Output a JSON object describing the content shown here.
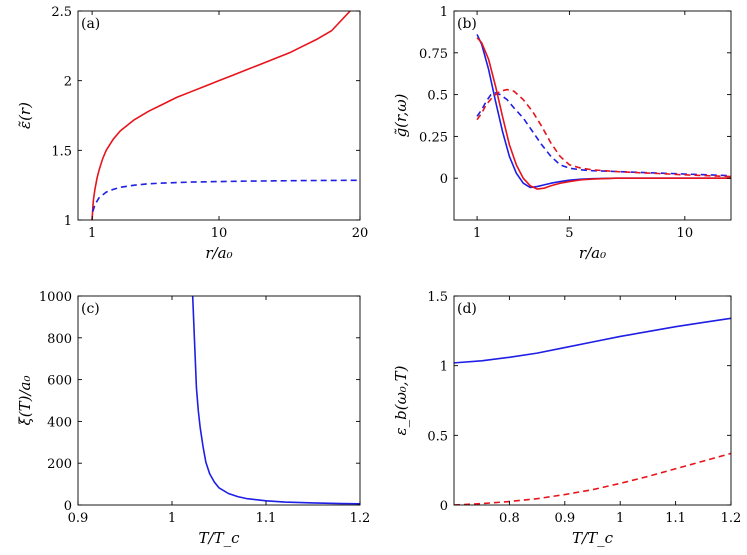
{
  "chart_data": [
    {
      "type": "line",
      "panel_label": "(a)",
      "xlabel": "r/a₀",
      "ylabel": "ε̃(r)",
      "xlim": [
        0,
        20
      ],
      "ylim": [
        1,
        2.5
      ],
      "xticks": [
        1,
        10,
        20
      ],
      "yticks": [
        1,
        1.5,
        2,
        2.5
      ],
      "grid": false,
      "series": [
        {
          "name": "solid",
          "color": "#e8141c",
          "style": "solid",
          "x": [
            1,
            1.05,
            1.1,
            1.2,
            1.35,
            1.5,
            1.75,
            2,
            2.5,
            3,
            3.5,
            4,
            5,
            6,
            7,
            8,
            9,
            10,
            11,
            12,
            13,
            14,
            15,
            16,
            17,
            18,
            19.3
          ],
          "y": [
            1.0,
            1.09,
            1.15,
            1.22,
            1.3,
            1.36,
            1.44,
            1.5,
            1.58,
            1.64,
            1.68,
            1.72,
            1.78,
            1.83,
            1.88,
            1.92,
            1.96,
            2.0,
            2.04,
            2.08,
            2.12,
            2.16,
            2.2,
            2.25,
            2.3,
            2.36,
            2.5
          ]
        },
        {
          "name": "dashed",
          "color": "#1e1ee6",
          "style": "dashed",
          "x": [
            1.05,
            1.2,
            1.5,
            2,
            2.5,
            3,
            4,
            5,
            6,
            8,
            10,
            12,
            14,
            16,
            18,
            20
          ],
          "y": [
            1.06,
            1.11,
            1.16,
            1.2,
            1.22,
            1.235,
            1.25,
            1.26,
            1.265,
            1.272,
            1.276,
            1.279,
            1.281,
            1.283,
            1.284,
            1.285
          ]
        }
      ]
    },
    {
      "type": "line",
      "panel_label": "(b)",
      "xlabel": "r/a₀",
      "ylabel": "g̃(r,ω)",
      "xlim": [
        0,
        12
      ],
      "ylim": [
        -0.25,
        1
      ],
      "xticks": [
        1,
        5,
        10
      ],
      "yticks": [
        0,
        0.25,
        0.5,
        0.75,
        1
      ],
      "grid": false,
      "series": [
        {
          "name": "blue solid",
          "color": "#1e1ee6",
          "style": "solid",
          "x": [
            1,
            1.2,
            1.5,
            1.8,
            2.1,
            2.4,
            2.7,
            3.0,
            3.3,
            3.6,
            3.9,
            4.2,
            4.6,
            5.0,
            5.5,
            6,
            7,
            8,
            10,
            12
          ],
          "y": [
            0.86,
            0.8,
            0.65,
            0.46,
            0.28,
            0.13,
            0.03,
            -0.03,
            -0.055,
            -0.05,
            -0.04,
            -0.03,
            -0.02,
            -0.012,
            -0.006,
            -0.003,
            0,
            0,
            0,
            0
          ]
        },
        {
          "name": "red solid",
          "color": "#e8141c",
          "style": "solid",
          "x": [
            1,
            1.2,
            1.5,
            1.8,
            2.1,
            2.4,
            2.7,
            3.0,
            3.3,
            3.6,
            3.9,
            4.2,
            4.6,
            5.0,
            5.5,
            6,
            7,
            8,
            10,
            12
          ],
          "y": [
            0.84,
            0.81,
            0.71,
            0.55,
            0.37,
            0.2,
            0.08,
            0.0,
            -0.045,
            -0.065,
            -0.06,
            -0.045,
            -0.03,
            -0.02,
            -0.01,
            -0.005,
            0,
            0,
            0,
            0
          ]
        },
        {
          "name": "blue dashed",
          "color": "#1e1ee6",
          "style": "dashed",
          "x": [
            1,
            1.2,
            1.4,
            1.6,
            1.8,
            2.0,
            2.3,
            2.6,
            3.0,
            3.4,
            3.8,
            4.2,
            4.6,
            5.0,
            5.5,
            6,
            7,
            8,
            9,
            10,
            11,
            12
          ],
          "y": [
            0.37,
            0.41,
            0.46,
            0.5,
            0.51,
            0.5,
            0.47,
            0.42,
            0.36,
            0.28,
            0.2,
            0.13,
            0.08,
            0.06,
            0.05,
            0.045,
            0.04,
            0.035,
            0.03,
            0.025,
            0.02,
            0.015
          ]
        },
        {
          "name": "red dashed",
          "color": "#e8141c",
          "style": "dashed",
          "x": [
            1,
            1.2,
            1.4,
            1.7,
            2.0,
            2.3,
            2.6,
            3.0,
            3.4,
            3.8,
            4.2,
            4.6,
            5.0,
            5.5,
            6,
            7,
            8,
            9,
            10,
            11,
            12
          ],
          "y": [
            0.35,
            0.39,
            0.44,
            0.49,
            0.52,
            0.53,
            0.52,
            0.47,
            0.4,
            0.31,
            0.21,
            0.13,
            0.08,
            0.06,
            0.05,
            0.04,
            0.033,
            0.027,
            0.02,
            0.015,
            0.01
          ]
        }
      ]
    },
    {
      "type": "line",
      "panel_label": "(c)",
      "xlabel": "T/T_c",
      "ylabel": "ξ(T)/a₀",
      "xlim": [
        0.9,
        1.2
      ],
      "ylim": [
        0,
        1000
      ],
      "xticks": [
        0.9,
        1,
        1.1,
        1.2
      ],
      "xtick_labels": [
        "0.9",
        "1",
        "1.1",
        "1.2"
      ],
      "yticks": [
        0,
        200,
        400,
        600,
        800,
        1000
      ],
      "grid": false,
      "series": [
        {
          "name": "xi",
          "color": "#1e1ee6",
          "style": "solid",
          "x": [
            1.022,
            1.024,
            1.026,
            1.028,
            1.03,
            1.033,
            1.036,
            1.04,
            1.045,
            1.05,
            1.06,
            1.07,
            1.08,
            1.1,
            1.12,
            1.15,
            1.18,
            1.2
          ],
          "y": [
            1000,
            780,
            560,
            450,
            370,
            280,
            205,
            150,
            110,
            82,
            55,
            40,
            30,
            20,
            14,
            10,
            7,
            6
          ]
        }
      ]
    },
    {
      "type": "line",
      "panel_label": "(d)",
      "xlabel": "T/T_c",
      "ylabel": "ε_b(ω₀,T)",
      "xlim": [
        0.7,
        1.2
      ],
      "ylim": [
        0,
        1.5
      ],
      "xticks": [
        0.8,
        0.9,
        1,
        1.1,
        1.2
      ],
      "xtick_labels": [
        "0.8",
        "0.9",
        "1",
        "1.1",
        "1.2"
      ],
      "yticks": [
        0,
        0.5,
        1,
        1.5
      ],
      "grid": false,
      "series": [
        {
          "name": "solid",
          "color": "#1e1ee6",
          "style": "solid",
          "x": [
            0.7,
            0.75,
            0.8,
            0.85,
            0.9,
            0.95,
            1.0,
            1.05,
            1.1,
            1.15,
            1.2
          ],
          "y": [
            1.02,
            1.035,
            1.06,
            1.09,
            1.13,
            1.17,
            1.21,
            1.245,
            1.28,
            1.31,
            1.34
          ]
        },
        {
          "name": "dashed",
          "color": "#e8141c",
          "style": "dashed",
          "x": [
            0.7,
            0.75,
            0.8,
            0.85,
            0.9,
            0.95,
            1.0,
            1.05,
            1.1,
            1.15,
            1.2
          ],
          "y": [
            0.0,
            0.01,
            0.025,
            0.045,
            0.075,
            0.11,
            0.155,
            0.205,
            0.26,
            0.315,
            0.37
          ]
        }
      ]
    }
  ]
}
